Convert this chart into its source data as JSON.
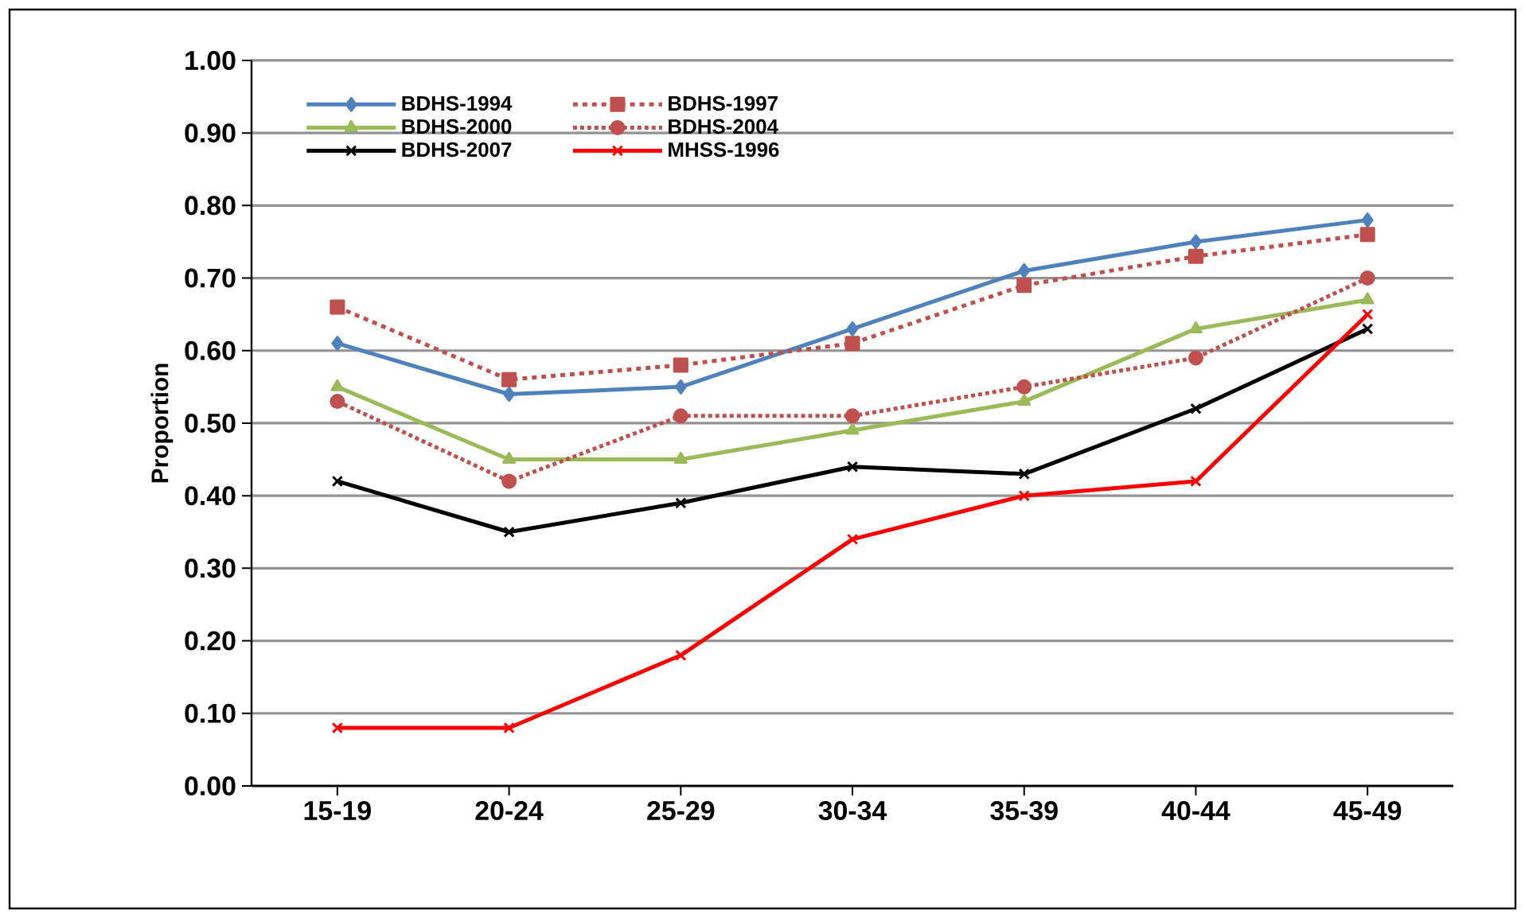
{
  "chart_data": {
    "type": "line",
    "ylabel": "Proportion",
    "categories": [
      "15-19",
      "20-24",
      "25-29",
      "30-34",
      "35-39",
      "40-44",
      "45-49"
    ],
    "ylim": [
      0,
      1
    ],
    "yticks": [
      {
        "value": 0,
        "label": "0.00"
      },
      {
        "value": 0.1,
        "label": "0.10"
      },
      {
        "value": 0.2,
        "label": "0.20"
      },
      {
        "value": 0.3,
        "label": "0.30"
      },
      {
        "value": 0.4,
        "label": "0.40"
      },
      {
        "value": 0.5,
        "label": "0.50"
      },
      {
        "value": 0.6,
        "label": "0.60"
      },
      {
        "value": 0.7,
        "label": "0.70"
      },
      {
        "value": 0.8,
        "label": "0.80"
      },
      {
        "value": 0.9,
        "label": "0.90"
      },
      {
        "value": 1,
        "label": "1.00"
      }
    ],
    "grid": "y",
    "legend": "top left",
    "series": [
      {
        "name": "BDHS-1994",
        "color": "#4f81bd",
        "marker": "diamond",
        "line_style": "solid",
        "values": [
          0.61,
          0.54,
          0.55,
          0.63,
          0.71,
          0.75,
          0.78
        ]
      },
      {
        "name": "BDHS-1997",
        "color": "#c0504d",
        "marker": "square",
        "line_style": "dashed",
        "values": [
          0.66,
          0.56,
          0.58,
          0.61,
          0.69,
          0.73,
          0.76
        ]
      },
      {
        "name": "BDHS-2000",
        "color": "#9bbb59",
        "marker": "triangle",
        "line_style": "solid",
        "values": [
          0.55,
          0.45,
          0.45,
          0.49,
          0.53,
          0.63,
          0.67
        ]
      },
      {
        "name": "BDHS-2004",
        "color": "#c0504d",
        "marker": "circle",
        "line_style": "dotted",
        "values": [
          0.53,
          0.42,
          0.51,
          0.51,
          0.55,
          0.59,
          0.7
        ]
      },
      {
        "name": "BDHS-2007",
        "color": "#000000",
        "marker": "cross",
        "line_style": "solid",
        "values": [
          0.42,
          0.35,
          0.39,
          0.44,
          0.43,
          0.52,
          0.63
        ]
      },
      {
        "name": "MHSS-1996",
        "color": "#ff0000",
        "marker": "cross",
        "line_style": "solid",
        "values": [
          0.08,
          0.08,
          0.18,
          0.34,
          0.4,
          0.42,
          0.65
        ]
      }
    ]
  }
}
